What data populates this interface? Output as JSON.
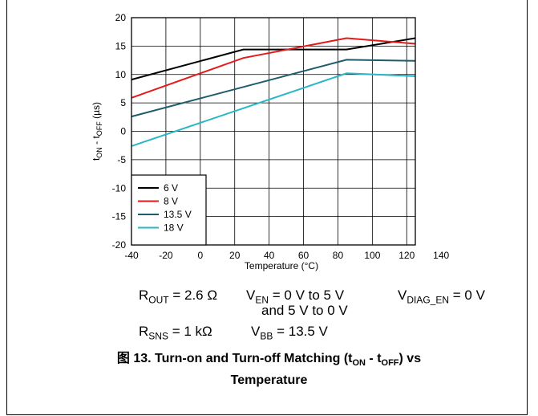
{
  "chart_data": {
    "type": "line",
    "xlabel": "Temperature (°C)",
    "ylabel": "t",
    "ylabel_sub1": "ON",
    "ylabel_mid": " - t",
    "ylabel_sub2": "OFF",
    "ylabel_unit": " (µs)",
    "xlim": [
      -40,
      140
    ],
    "ylim": [
      -20,
      20
    ],
    "x_ticks": [
      -40,
      -20,
      0,
      20,
      40,
      60,
      80,
      100,
      120,
      140
    ],
    "y_ticks": [
      20,
      15,
      10,
      5,
      0,
      -5,
      -10,
      -15,
      -20
    ],
    "grid": true,
    "legend_position": "bottom-left",
    "series": [
      {
        "name": "6 V",
        "color": "#000000",
        "x": [
          -40,
          25,
          85,
          125
        ],
        "y": [
          9.1,
          14.4,
          14.4,
          16.4
        ]
      },
      {
        "name": "8 V",
        "color": "#e41a1c",
        "x": [
          -40,
          25,
          85,
          125
        ],
        "y": [
          5.9,
          12.9,
          16.4,
          15.4
        ]
      },
      {
        "name": "13.5 V",
        "color": "#1f5c6b",
        "x": [
          -40,
          85,
          125
        ],
        "y": [
          2.6,
          12.6,
          12.4
        ]
      },
      {
        "name": "18 V",
        "color": "#29b6c6",
        "x": [
          -40,
          85,
          125
        ],
        "y": [
          -2.6,
          10.2,
          9.7
        ]
      }
    ]
  },
  "conditions": {
    "rout_main": "R",
    "rout_sub": "OUT",
    "rout_value": " = 2.6 Ω",
    "ven_main": "V",
    "ven_sub": "EN",
    "ven_value": " = 0 V to 5 V",
    "ven_line2": "and 5 V to 0 V",
    "vdiag_main": "V",
    "vdiag_sub": "DIAG_EN",
    "vdiag_value": " = 0 V",
    "rsns_main": "R",
    "rsns_sub": "SNS",
    "rsns_value": " = 1 kΩ",
    "vbb_main": "V",
    "vbb_sub": "BB",
    "vbb_value": " = 13.5 V"
  },
  "caption": {
    "part1": "图 13. Turn-on and Turn-off Matching (t",
    "sub1": "ON",
    "part2": " - t",
    "sub2": "OFF",
    "part3": ") vs",
    "line2": "Temperature"
  }
}
